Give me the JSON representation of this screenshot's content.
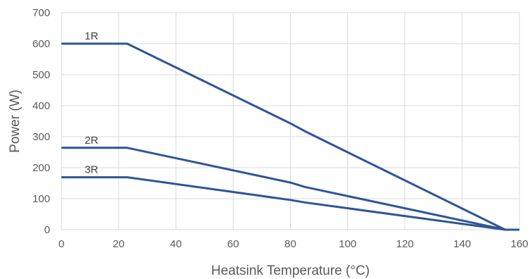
{
  "chart_data": {
    "type": "line",
    "title": "",
    "xlabel": "Heatsink Temperature (°C)",
    "ylabel": "Power (W)",
    "xlim": [
      0,
      160
    ],
    "ylim": [
      0,
      700
    ],
    "xticks": [
      0,
      20,
      40,
      60,
      80,
      100,
      120,
      140,
      160
    ],
    "yticks": [
      0,
      100,
      200,
      300,
      400,
      500,
      600,
      700
    ],
    "grid": true,
    "legend": "none",
    "line_color": "#2f5597",
    "series": [
      {
        "name": "1R",
        "points": [
          [
            0,
            600
          ],
          [
            23,
            600
          ],
          [
            80,
            343
          ],
          [
            85,
            318
          ],
          [
            155,
            0
          ],
          [
            160,
            0
          ]
        ]
      },
      {
        "name": "2R",
        "points": [
          [
            0,
            264
          ],
          [
            23,
            264
          ],
          [
            80,
            152
          ],
          [
            85,
            138
          ],
          [
            155,
            0
          ]
        ]
      },
      {
        "name": "3R",
        "points": [
          [
            0,
            169
          ],
          [
            23,
            169
          ],
          [
            80,
            96
          ],
          [
            85,
            88
          ],
          [
            155,
            0
          ]
        ]
      }
    ]
  }
}
